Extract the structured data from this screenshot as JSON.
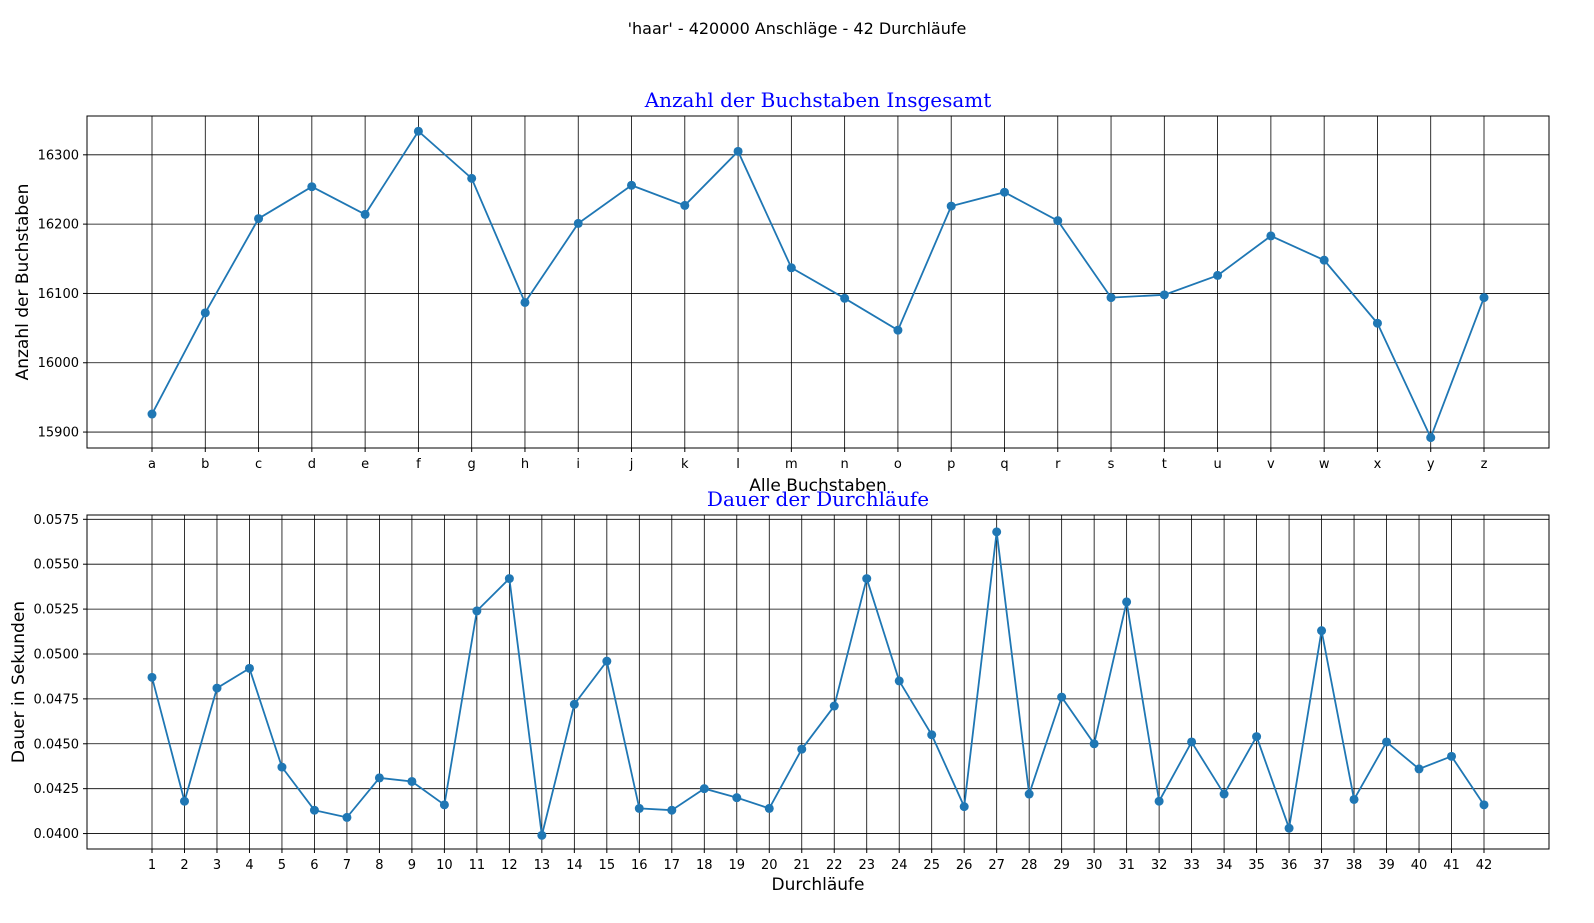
{
  "suptitle": "'haar' - 420000 Anschläge - 42 Durchläufe",
  "chart_data": [
    {
      "type": "line",
      "title": "Anzahl der Buchstaben Insgesamt",
      "xlabel": "Alle Buchstaben",
      "ylabel": "Anzahl der Buchstaben",
      "categories": [
        "a",
        "b",
        "c",
        "d",
        "e",
        "f",
        "g",
        "h",
        "i",
        "j",
        "k",
        "l",
        "m",
        "n",
        "o",
        "p",
        "q",
        "r",
        "s",
        "t",
        "u",
        "v",
        "w",
        "x",
        "y",
        "z"
      ],
      "values": [
        15926,
        16072,
        16208,
        16254,
        16214,
        16334,
        16266,
        16087,
        16201,
        16256,
        16227,
        16305,
        16137,
        16093,
        16047,
        16226,
        16246,
        16205,
        16094,
        16098,
        16126,
        16183,
        16148,
        16057,
        15892,
        16094
      ],
      "yticks": [
        15900,
        16000,
        16100,
        16200,
        16300
      ],
      "ylim": [
        15877,
        16356
      ],
      "grid": true,
      "color": "#1f77b4",
      "marker": "circle"
    },
    {
      "type": "line",
      "title": "Dauer der Durchläufe",
      "xlabel": "Durchläufe",
      "ylabel": "Dauer in Sekunden",
      "categories": [
        "1",
        "2",
        "3",
        "4",
        "5",
        "6",
        "7",
        "8",
        "9",
        "10",
        "11",
        "12",
        "13",
        "14",
        "15",
        "16",
        "17",
        "18",
        "19",
        "20",
        "21",
        "22",
        "23",
        "24",
        "25",
        "26",
        "27",
        "28",
        "29",
        "30",
        "31",
        "32",
        "33",
        "34",
        "35",
        "36",
        "37",
        "38",
        "39",
        "40",
        "41",
        "42"
      ],
      "values": [
        0.0487,
        0.0418,
        0.0481,
        0.0492,
        0.0437,
        0.0413,
        0.0409,
        0.0431,
        0.0429,
        0.0416,
        0.0524,
        0.0542,
        0.0399,
        0.0472,
        0.0496,
        0.0414,
        0.0413,
        0.0425,
        0.042,
        0.0414,
        0.0447,
        0.0471,
        0.0542,
        0.0485,
        0.0455,
        0.0415,
        0.0568,
        0.0422,
        0.0476,
        0.045,
        0.0529,
        0.0418,
        0.0451,
        0.0422,
        0.0454,
        0.0403,
        0.0513,
        0.0419,
        0.0451,
        0.0436,
        0.0443,
        0.0416
      ],
      "yticks": [
        0.04,
        0.0425,
        0.045,
        0.0475,
        0.05,
        0.0525,
        0.055,
        0.0575
      ],
      "ylim": [
        0.03914,
        0.05774
      ],
      "grid": true,
      "color": "#1f77b4",
      "marker": "circle"
    }
  ]
}
